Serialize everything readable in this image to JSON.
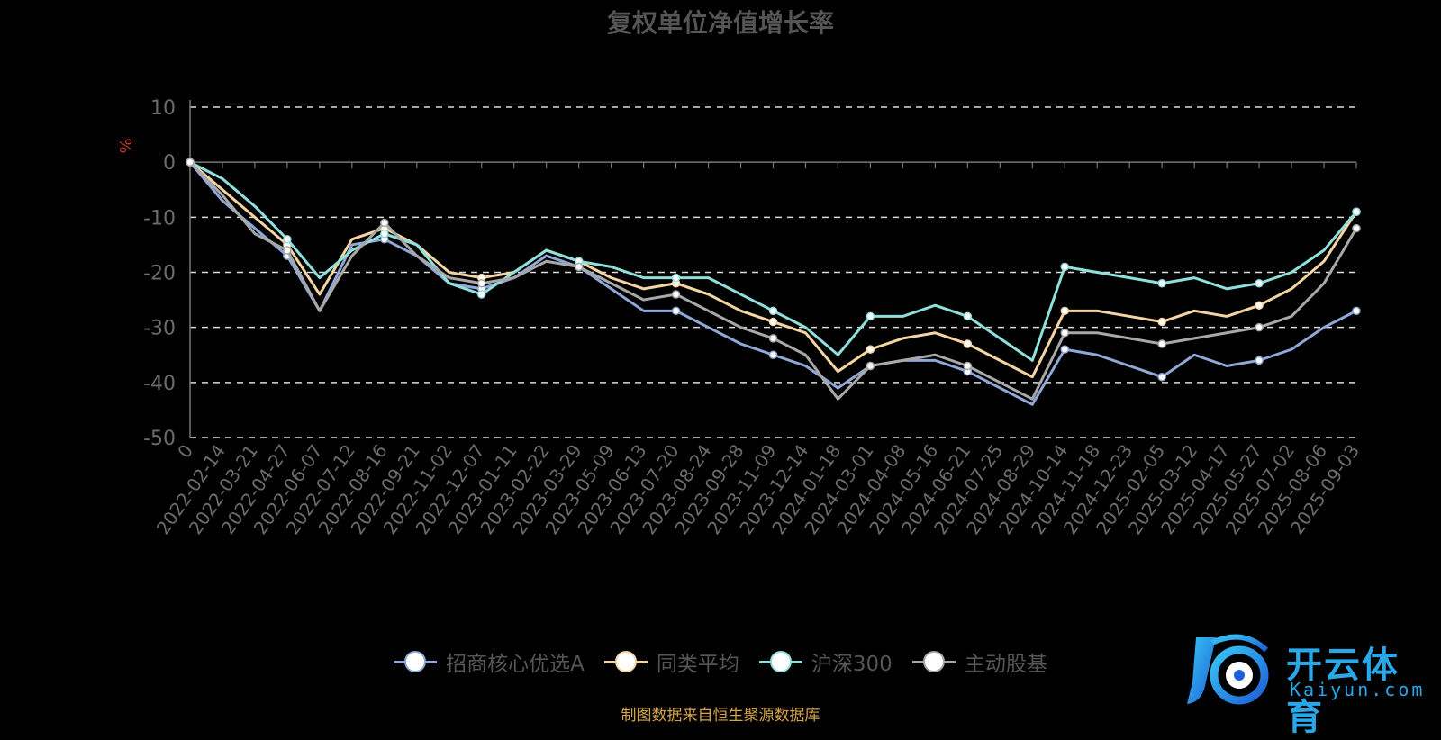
{
  "chart_data": {
    "type": "line",
    "title": "复权单位净值增长率",
    "ylabel": "%",
    "ylim": [
      -50,
      10
    ],
    "yticks": [
      10,
      0,
      -10,
      -20,
      -30,
      -40,
      -50
    ],
    "grid": "dashed horizontal",
    "legend_position": "bottom",
    "x_ticks": [
      "0",
      "2022-02-14",
      "2022-03-21",
      "2022-04-27",
      "2022-06-07",
      "2022-07-12",
      "2022-08-16",
      "2022-09-21",
      "2022-11-02",
      "2022-12-07",
      "2023-01-11",
      "2023-02-22",
      "2023-03-29",
      "2023-05-09",
      "2023-06-13",
      "2023-07-20",
      "2023-08-24",
      "2023-09-28",
      "2023-11-09",
      "2023-12-14",
      "2024-01-18",
      "2024-03-01",
      "2024-04-08",
      "2024-05-16",
      "2024-06-21",
      "2024-07-25",
      "2024-08-29",
      "2024-10-14",
      "2024-11-18",
      "2024-12-23",
      "2025-02-05",
      "2025-03-12",
      "2025-04-17",
      "2025-05-27",
      "2025-07-02",
      "2025-08-06",
      "2025-09-03"
    ],
    "series": [
      {
        "name": "招商核心优选A",
        "color": "#8fa8d8",
        "values": [
          0,
          -7,
          -12,
          -17,
          -27,
          -15,
          -14,
          -17,
          -22,
          -23,
          -21,
          -17,
          -19,
          -23,
          -27,
          -27,
          -30,
          -33,
          -35,
          -37,
          -41,
          -37,
          -36,
          -36,
          -38,
          -41,
          -44,
          -34,
          -35,
          -37,
          -39,
          -35,
          -37,
          -36,
          -34,
          -30,
          -27
        ]
      },
      {
        "name": "同类平均",
        "color": "#f4d5a2",
        "values": [
          0,
          -5,
          -10,
          -15,
          -24,
          -14,
          -12,
          -15,
          -20,
          -21,
          -20,
          -16,
          -18,
          -21,
          -23,
          -22,
          -24,
          -27,
          -29,
          -31,
          -38,
          -34,
          -32,
          -31,
          -33,
          -36,
          -39,
          -27,
          -27,
          -28,
          -29,
          -27,
          -28,
          -26,
          -23,
          -18,
          -9
        ]
      },
      {
        "name": "沪深300",
        "color": "#8fe0dc",
        "values": [
          0,
          -3,
          -8,
          -14,
          -21,
          -16,
          -13,
          -15,
          -22,
          -24,
          -20,
          -16,
          -18,
          -19,
          -21,
          -21,
          -21,
          -24,
          -27,
          -30,
          -35,
          -28,
          -28,
          -26,
          -28,
          -32,
          -36,
          -19,
          -20,
          -21,
          -22,
          -21,
          -23,
          -22,
          -20,
          -16,
          -9
        ]
      },
      {
        "name": "主动股基",
        "color": "#a8a8a8",
        "values": [
          0,
          -6,
          -13,
          -16,
          -27,
          -17,
          -11,
          -17,
          -21,
          -22,
          -21,
          -18,
          -19,
          -22,
          -25,
          -24,
          -27,
          -30,
          -32,
          -35,
          -43,
          -37,
          -36,
          -35,
          -37,
          -40,
          -43,
          -31,
          -31,
          -32,
          -33,
          -32,
          -31,
          -30,
          -28,
          -22,
          -12
        ]
      }
    ]
  },
  "legend": [
    {
      "label": "招商核心优选A",
      "color": "#8fa8d8"
    },
    {
      "label": "同类平均",
      "color": "#f4d5a2"
    },
    {
      "label": "沪深300",
      "color": "#8fe0dc"
    },
    {
      "label": "主动股基",
      "color": "#a8a8a8"
    }
  ],
  "source_note": "制图数据来自恒生聚源数据库",
  "watermark": {
    "brand": "开云体育",
    "url": "Kaiyun.com"
  }
}
